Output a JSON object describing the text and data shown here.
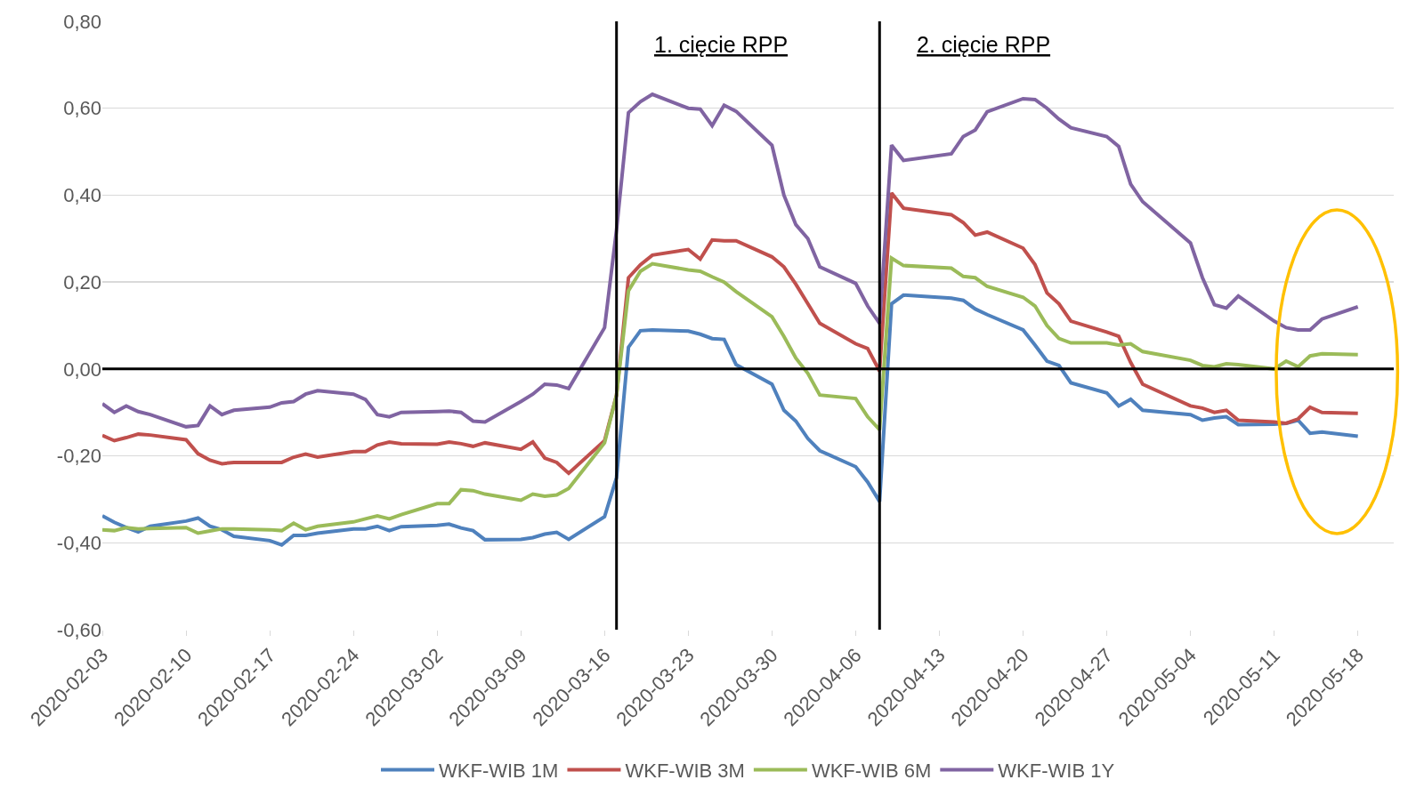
{
  "chart_data": {
    "type": "line",
    "x": [
      "2020-02-03",
      "2020-02-04",
      "2020-02-05",
      "2020-02-06",
      "2020-02-07",
      "2020-02-10",
      "2020-02-11",
      "2020-02-12",
      "2020-02-13",
      "2020-02-14",
      "2020-02-17",
      "2020-02-18",
      "2020-02-19",
      "2020-02-20",
      "2020-02-21",
      "2020-02-24",
      "2020-02-25",
      "2020-02-26",
      "2020-02-27",
      "2020-02-28",
      "2020-03-02",
      "2020-03-03",
      "2020-03-04",
      "2020-03-05",
      "2020-03-06",
      "2020-03-09",
      "2020-03-10",
      "2020-03-11",
      "2020-03-12",
      "2020-03-13",
      "2020-03-16",
      "2020-03-17",
      "2020-03-18",
      "2020-03-19",
      "2020-03-20",
      "2020-03-23",
      "2020-03-24",
      "2020-03-25",
      "2020-03-26",
      "2020-03-27",
      "2020-03-30",
      "2020-03-31",
      "2020-04-01",
      "2020-04-02",
      "2020-04-03",
      "2020-04-06",
      "2020-04-07",
      "2020-04-08",
      "2020-04-09",
      "2020-04-10",
      "2020-04-14",
      "2020-04-15",
      "2020-04-16",
      "2020-04-17",
      "2020-04-20",
      "2020-04-21",
      "2020-04-22",
      "2020-04-23",
      "2020-04-24",
      "2020-04-27",
      "2020-04-28",
      "2020-04-29",
      "2020-04-30",
      "2020-05-04",
      "2020-05-05",
      "2020-05-06",
      "2020-05-07",
      "2020-05-08",
      "2020-05-11",
      "2020-05-12",
      "2020-05-13",
      "2020-05-14",
      "2020-05-15",
      "2020-05-18"
    ],
    "series": [
      {
        "name": "WKF-WIB 1M",
        "color": "#4f81bd",
        "values": [
          -0.338,
          -0.353,
          -0.365,
          -0.375,
          -0.362,
          -0.35,
          -0.343,
          -0.362,
          -0.37,
          -0.385,
          -0.395,
          -0.405,
          -0.383,
          -0.383,
          -0.378,
          -0.368,
          -0.368,
          -0.362,
          -0.372,
          -0.363,
          -0.36,
          -0.357,
          -0.366,
          -0.372,
          -0.393,
          -0.392,
          -0.388,
          -0.38,
          -0.376,
          -0.392,
          -0.34,
          -0.25,
          0.05,
          0.088,
          0.09,
          0.087,
          0.08,
          0.07,
          0.068,
          0.01,
          -0.035,
          -0.095,
          -0.12,
          -0.16,
          -0.188,
          -0.225,
          -0.26,
          -0.305,
          0.15,
          0.17,
          0.163,
          0.158,
          0.138,
          0.125,
          0.09,
          0.055,
          0.018,
          0.008,
          -0.032,
          -0.055,
          -0.085,
          -0.07,
          -0.095,
          -0.105,
          -0.118,
          -0.113,
          -0.11,
          -0.128,
          -0.127,
          -0.125,
          -0.118,
          -0.148,
          -0.145,
          -0.155
        ]
      },
      {
        "name": "WKF-WIB 3M",
        "color": "#c0504d",
        "values": [
          -0.153,
          -0.165,
          -0.158,
          -0.15,
          -0.152,
          -0.163,
          -0.195,
          -0.21,
          -0.218,
          -0.215,
          -0.215,
          -0.215,
          -0.203,
          -0.196,
          -0.203,
          -0.19,
          -0.19,
          -0.175,
          -0.168,
          -0.172,
          -0.173,
          -0.168,
          -0.172,
          -0.178,
          -0.17,
          -0.185,
          -0.168,
          -0.205,
          -0.215,
          -0.24,
          -0.165,
          -0.06,
          0.21,
          0.24,
          0.262,
          0.275,
          0.253,
          0.297,
          0.295,
          0.295,
          0.258,
          0.235,
          0.195,
          0.15,
          0.105,
          0.058,
          0.047,
          -0.005,
          0.405,
          0.37,
          0.355,
          0.337,
          0.308,
          0.315,
          0.278,
          0.24,
          0.175,
          0.15,
          0.11,
          0.085,
          0.075,
          0.015,
          -0.035,
          -0.085,
          -0.09,
          -0.1,
          -0.095,
          -0.118,
          -0.122,
          -0.125,
          -0.115,
          -0.088,
          -0.1,
          -0.102
        ]
      },
      {
        "name": "WKF-WIB 6M",
        "color": "#9bbb59",
        "values": [
          -0.37,
          -0.372,
          -0.365,
          -0.368,
          -0.367,
          -0.365,
          -0.378,
          -0.373,
          -0.368,
          -0.368,
          -0.37,
          -0.372,
          -0.355,
          -0.37,
          -0.362,
          -0.352,
          -0.345,
          -0.338,
          -0.345,
          -0.335,
          -0.31,
          -0.31,
          -0.278,
          -0.28,
          -0.288,
          -0.302,
          -0.288,
          -0.293,
          -0.29,
          -0.275,
          -0.17,
          -0.06,
          0.18,
          0.225,
          0.242,
          0.228,
          0.225,
          0.212,
          0.2,
          0.178,
          0.12,
          0.075,
          0.025,
          -0.01,
          -0.06,
          -0.068,
          -0.11,
          -0.14,
          0.255,
          0.238,
          0.232,
          0.213,
          0.21,
          0.19,
          0.165,
          0.145,
          0.1,
          0.07,
          0.06,
          0.06,
          0.055,
          0.058,
          0.04,
          0.02,
          0.008,
          0.005,
          0.012,
          0.01,
          0.0,
          0.018,
          0.005,
          0.03,
          0.035,
          0.033
        ]
      },
      {
        "name": "WKF-WIB 1Y",
        "color": "#8064a2",
        "values": [
          -0.08,
          -0.1,
          -0.085,
          -0.098,
          -0.105,
          -0.133,
          -0.13,
          -0.085,
          -0.105,
          -0.095,
          -0.088,
          -0.078,
          -0.075,
          -0.058,
          -0.05,
          -0.058,
          -0.07,
          -0.105,
          -0.11,
          -0.1,
          -0.098,
          -0.097,
          -0.1,
          -0.12,
          -0.122,
          -0.075,
          -0.058,
          -0.035,
          -0.037,
          -0.045,
          0.095,
          0.32,
          0.59,
          0.615,
          0.632,
          0.6,
          0.598,
          0.56,
          0.607,
          0.593,
          0.515,
          0.4,
          0.332,
          0.3,
          0.235,
          0.197,
          0.145,
          0.105,
          0.515,
          0.48,
          0.495,
          0.535,
          0.55,
          0.592,
          0.622,
          0.62,
          0.6,
          0.575,
          0.555,
          0.535,
          0.512,
          0.425,
          0.385,
          0.29,
          0.21,
          0.148,
          0.14,
          0.168,
          0.11,
          0.095,
          0.09,
          0.09,
          0.115,
          0.143
        ]
      }
    ],
    "xlim": [
      "2020-02-03",
      "2020-05-21"
    ],
    "xticks": [
      "2020-02-03",
      "2020-02-10",
      "2020-02-17",
      "2020-02-24",
      "2020-03-02",
      "2020-03-09",
      "2020-03-16",
      "2020-03-23",
      "2020-03-30",
      "2020-04-06",
      "2020-04-13",
      "2020-04-20",
      "2020-04-27",
      "2020-05-04",
      "2020-05-11",
      "2020-05-18"
    ],
    "ylim": [
      -0.6,
      0.8
    ],
    "yticks": [
      {
        "value": -0.6,
        "label": "-0,60"
      },
      {
        "value": -0.4,
        "label": "-0,40"
      },
      {
        "value": -0.2,
        "label": "-0,20"
      },
      {
        "value": 0,
        "label": "0,00"
      },
      {
        "value": 0.2,
        "label": "0,20"
      },
      {
        "value": 0.4,
        "label": "0,40"
      },
      {
        "value": 0.6,
        "label": "0,60"
      },
      {
        "value": 0.8,
        "label": "0,80"
      }
    ],
    "ref_lines": [
      {
        "axis": "x",
        "value": "2020-03-17",
        "label": "1. cięcie RPP",
        "color": "#000000"
      },
      {
        "axis": "x",
        "value": "2020-04-08",
        "label": "2. cięcie RPP",
        "color": "#000000"
      },
      {
        "axis": "y",
        "value": 0,
        "color": "#000000"
      }
    ],
    "grid": "y",
    "legend": "bottom",
    "line_style": "solid"
  }
}
